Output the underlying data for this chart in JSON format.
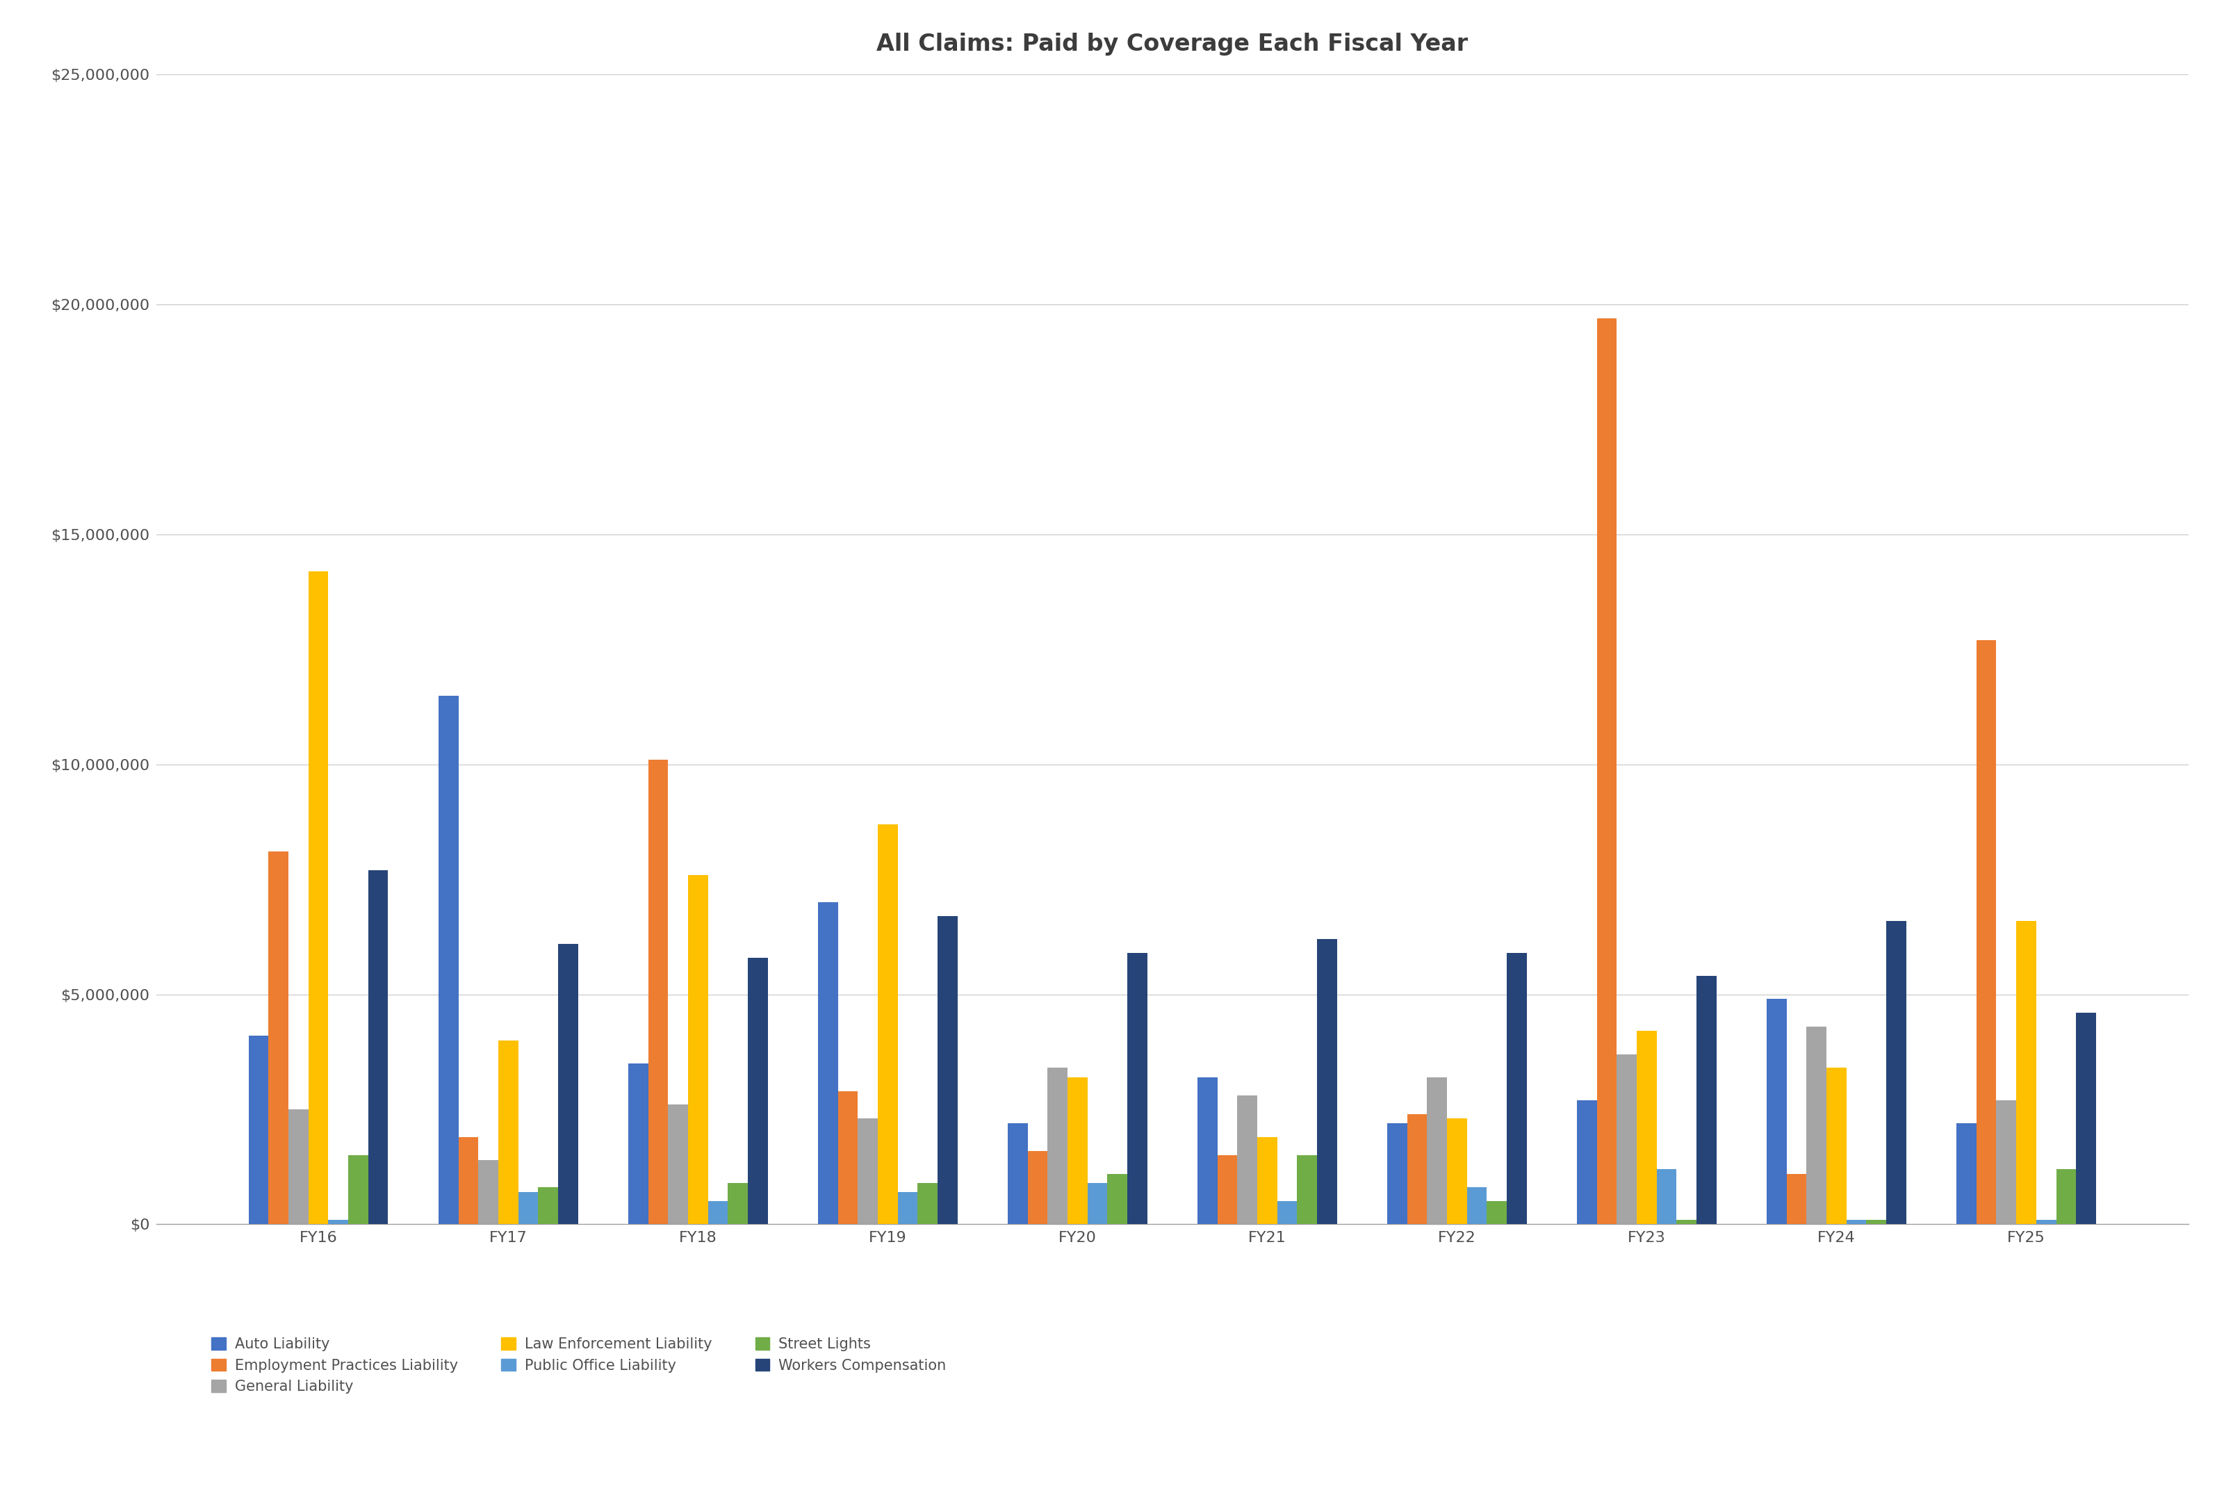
{
  "title": "All Claims: Paid by Coverage Each Fiscal Year",
  "fiscal_years": [
    "FY16",
    "FY17",
    "FY18",
    "FY19",
    "FY20",
    "FY21",
    "FY22",
    "FY23",
    "FY24",
    "FY25"
  ],
  "series": [
    {
      "name": "Auto Liability",
      "color": "#4472C4",
      "values": [
        4100000,
        11500000,
        3500000,
        7000000,
        2200000,
        3200000,
        2200000,
        2700000,
        4900000,
        2200000
      ]
    },
    {
      "name": "Employment Practices Liability",
      "color": "#ED7D31",
      "values": [
        8100000,
        1900000,
        10100000,
        2900000,
        1600000,
        1500000,
        2400000,
        19700000,
        1100000,
        12700000
      ]
    },
    {
      "name": "General Liability",
      "color": "#A5A5A5",
      "values": [
        2500000,
        1400000,
        2600000,
        2300000,
        3400000,
        2800000,
        3200000,
        3700000,
        4300000,
        2700000
      ]
    },
    {
      "name": "Law Enforcement Liability",
      "color": "#FFC000",
      "values": [
        14200000,
        4000000,
        7600000,
        8700000,
        3200000,
        1900000,
        2300000,
        4200000,
        3400000,
        6600000
      ]
    },
    {
      "name": "Public Office Liability",
      "color": "#5B9BD5",
      "values": [
        100000,
        700000,
        500000,
        700000,
        900000,
        500000,
        800000,
        1200000,
        100000,
        100000
      ]
    },
    {
      "name": "Street Lights",
      "color": "#70AD47",
      "values": [
        1500000,
        800000,
        900000,
        900000,
        1100000,
        1500000,
        500000,
        100000,
        100000,
        1200000
      ]
    },
    {
      "name": "Workers Compensation",
      "color": "#264478",
      "values": [
        7700000,
        6100000,
        5800000,
        6700000,
        5900000,
        6200000,
        5900000,
        5400000,
        6600000,
        4600000
      ]
    }
  ],
  "ylim": [
    0,
    25000000
  ],
  "ytick_values": [
    0,
    5000000,
    10000000,
    15000000,
    20000000,
    25000000
  ],
  "background_color": "#FFFFFF",
  "grid_color": "#C8C8C8",
  "title_fontsize": 24,
  "tick_fontsize": 16,
  "legend_fontsize": 15
}
